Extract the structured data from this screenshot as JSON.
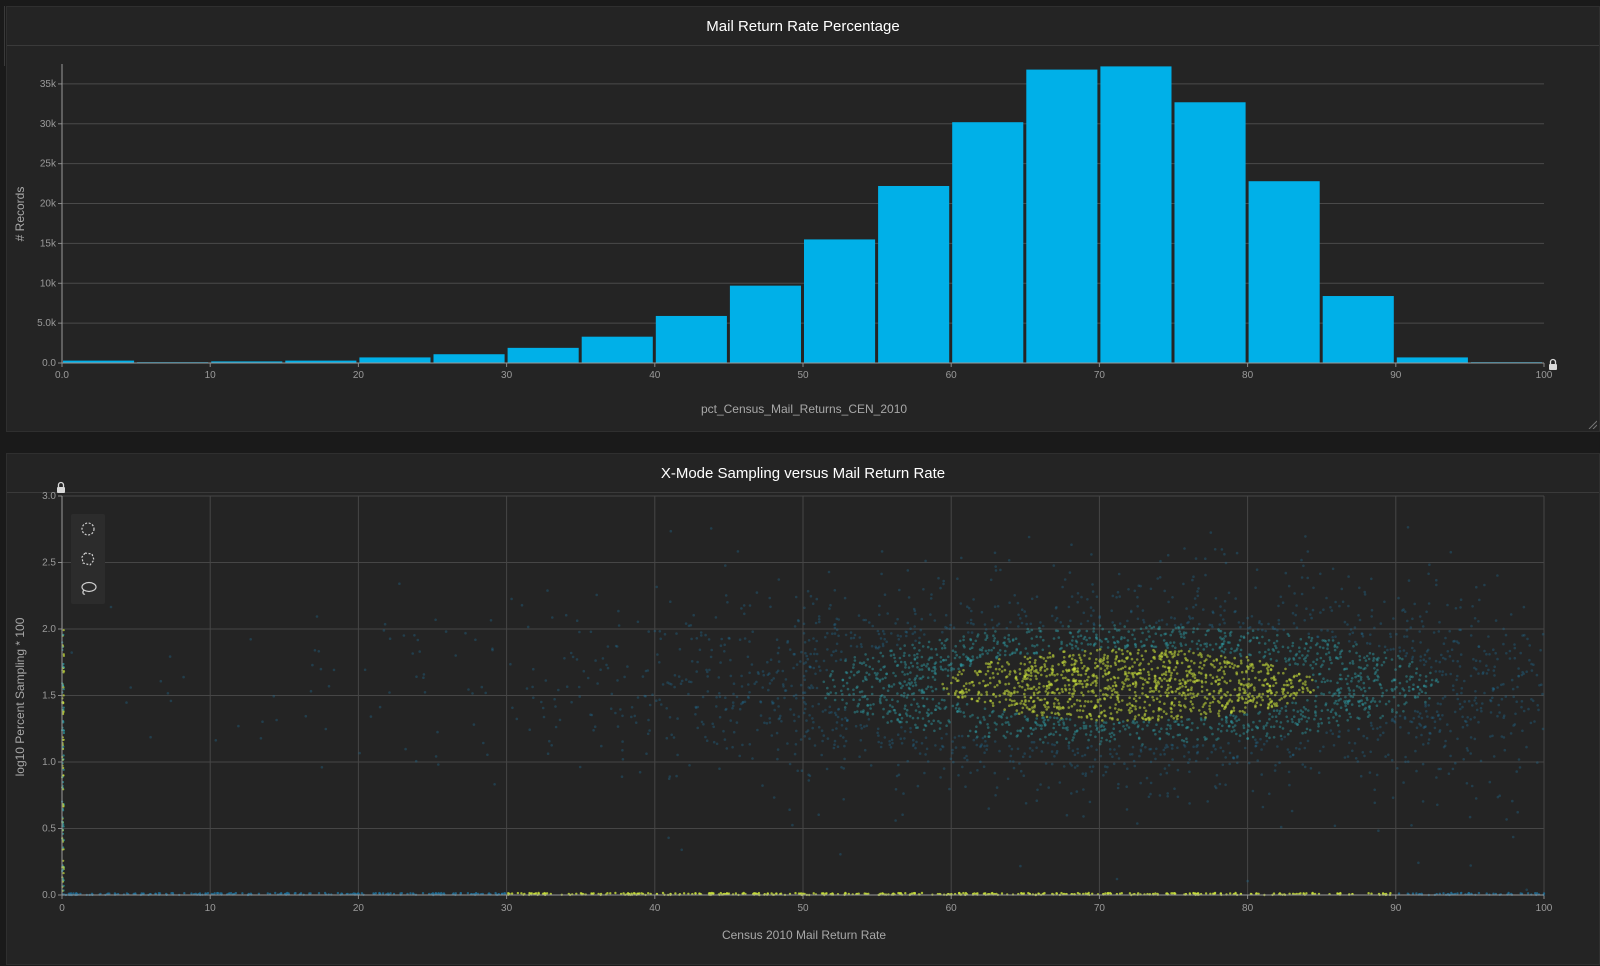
{
  "panels": {
    "histogram": {
      "title": "Mail Return Rate Percentage",
      "lock_icon": "lock-icon"
    },
    "scatter": {
      "title": "X-Mode Sampling versus Mail Return Rate",
      "lock_icon": "lock-icon",
      "tools": [
        {
          "name": "circle-select-tool",
          "icon": "dashed-circle-icon"
        },
        {
          "name": "polygon-select-tool",
          "icon": "dashed-polygon-icon"
        },
        {
          "name": "lasso-select-tool",
          "icon": "lasso-icon"
        }
      ]
    }
  },
  "colors": {
    "bar": "#00b0e8",
    "point_low": "#1f6f99",
    "point_mid": "#2ea0a8",
    "point_high": "#c8e03a"
  },
  "chart_data": [
    {
      "type": "bar",
      "title": "Mail Return Rate Percentage",
      "xlabel": "pct_Census_Mail_Returns_CEN_2010",
      "ylabel": "# Records",
      "bin_width": 5,
      "bins": [
        0,
        5,
        10,
        15,
        20,
        25,
        30,
        35,
        40,
        45,
        50,
        55,
        60,
        65,
        70,
        75,
        80,
        85,
        90,
        95
      ],
      "values": [
        300,
        100,
        200,
        300,
        700,
        1100,
        1900,
        3300,
        5900,
        9700,
        15500,
        22200,
        30200,
        36800,
        37200,
        32700,
        22800,
        8400,
        700,
        100
      ],
      "xlim": [
        0,
        100
      ],
      "ylim": [
        0,
        37500
      ],
      "x_ticks": [
        "0.0",
        "10",
        "20",
        "30",
        "40",
        "50",
        "60",
        "70",
        "80",
        "90",
        "100"
      ],
      "y_ticks": [
        "0.0",
        "5.0k",
        "10k",
        "15k",
        "20k",
        "25k",
        "30k",
        "35k"
      ],
      "y_tick_values": [
        0,
        5000,
        10000,
        15000,
        20000,
        25000,
        30000,
        35000
      ],
      "grid": true
    },
    {
      "type": "scatter",
      "title": "X-Mode Sampling versus Mail Return Rate",
      "xlabel": "Census 2010 Mail Return Rate",
      "ylabel": "log10 Percent Sampling * 100",
      "xlim": [
        0,
        100
      ],
      "ylim": [
        0,
        3
      ],
      "x_ticks": [
        "0",
        "10",
        "20",
        "30",
        "40",
        "50",
        "60",
        "70",
        "80",
        "90",
        "100"
      ],
      "y_ticks": [
        "0.0",
        "0.5",
        "1.0",
        "1.5",
        "2.0",
        "2.5",
        "3.0"
      ],
      "density_center": {
        "x": 72,
        "y": 1.58
      },
      "spread": {
        "x": 14,
        "y": 0.3
      },
      "baseline_y": 0,
      "baseline_range": [
        30,
        90
      ],
      "grid": true
    }
  ]
}
